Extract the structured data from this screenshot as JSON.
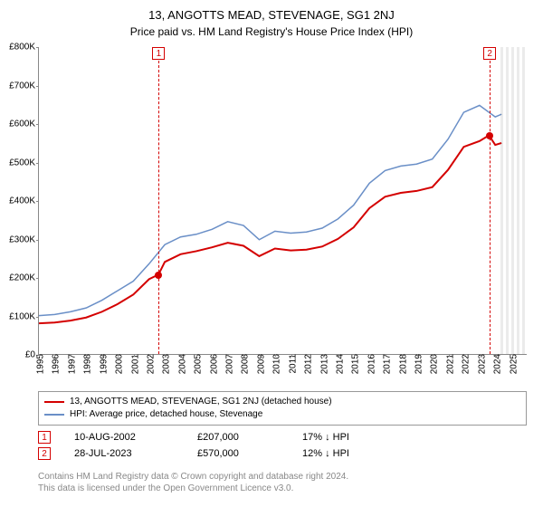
{
  "title_line1": "13, ANGOTTS MEAD, STEVENAGE, SG1 2NJ",
  "title_line2": "Price paid vs. HM Land Registry's House Price Index (HPI)",
  "chart": {
    "type": "line",
    "background_color": "#ffffff",
    "axis_color": "#888888",
    "tick_fontsize": 10,
    "ylim": [
      0,
      800000
    ],
    "ytick_step": 100000,
    "yticks": [
      "£0",
      "£100K",
      "£200K",
      "£300K",
      "£400K",
      "£500K",
      "£600K",
      "£700K",
      "£800K"
    ],
    "xlim": [
      1995,
      2026
    ],
    "xticks": [
      "1995",
      "1996",
      "1997",
      "1998",
      "1999",
      "2000",
      "2001",
      "2002",
      "2003",
      "2004",
      "2005",
      "2006",
      "2007",
      "2008",
      "2009",
      "2010",
      "2011",
      "2012",
      "2013",
      "2014",
      "2015",
      "2016",
      "2017",
      "2018",
      "2019",
      "2020",
      "2021",
      "2022",
      "2023",
      "2024",
      "2025"
    ],
    "forecast_start_year": 2024.3,
    "series": [
      {
        "id": "property",
        "label": "13, ANGOTTS MEAD, STEVENAGE, SG1 2NJ (detached house)",
        "color": "#d40000",
        "line_width": 2,
        "points": [
          [
            1995,
            80000
          ],
          [
            1996,
            82000
          ],
          [
            1997,
            87000
          ],
          [
            1998,
            95000
          ],
          [
            1999,
            110000
          ],
          [
            2000,
            130000
          ],
          [
            2001,
            155000
          ],
          [
            2002,
            195000
          ],
          [
            2002.6,
            207000
          ],
          [
            2003,
            240000
          ],
          [
            2004,
            260000
          ],
          [
            2005,
            268000
          ],
          [
            2006,
            278000
          ],
          [
            2007,
            290000
          ],
          [
            2008,
            282000
          ],
          [
            2009,
            255000
          ],
          [
            2010,
            275000
          ],
          [
            2011,
            270000
          ],
          [
            2012,
            272000
          ],
          [
            2013,
            280000
          ],
          [
            2014,
            300000
          ],
          [
            2015,
            330000
          ],
          [
            2016,
            380000
          ],
          [
            2017,
            410000
          ],
          [
            2018,
            420000
          ],
          [
            2019,
            425000
          ],
          [
            2020,
            435000
          ],
          [
            2021,
            480000
          ],
          [
            2022,
            540000
          ],
          [
            2023,
            555000
          ],
          [
            2023.6,
            570000
          ],
          [
            2024,
            545000
          ],
          [
            2024.4,
            550000
          ]
        ]
      },
      {
        "id": "hpi",
        "label": "HPI: Average price, detached house, Stevenage",
        "color": "#6a8fc7",
        "line_width": 1.5,
        "points": [
          [
            1995,
            100000
          ],
          [
            1996,
            103000
          ],
          [
            1997,
            110000
          ],
          [
            1998,
            120000
          ],
          [
            1999,
            140000
          ],
          [
            2000,
            165000
          ],
          [
            2001,
            190000
          ],
          [
            2002,
            235000
          ],
          [
            2003,
            285000
          ],
          [
            2004,
            305000
          ],
          [
            2005,
            312000
          ],
          [
            2006,
            325000
          ],
          [
            2007,
            345000
          ],
          [
            2008,
            335000
          ],
          [
            2009,
            298000
          ],
          [
            2010,
            320000
          ],
          [
            2011,
            315000
          ],
          [
            2012,
            318000
          ],
          [
            2013,
            328000
          ],
          [
            2014,
            352000
          ],
          [
            2015,
            388000
          ],
          [
            2016,
            445000
          ],
          [
            2017,
            478000
          ],
          [
            2018,
            490000
          ],
          [
            2019,
            495000
          ],
          [
            2020,
            508000
          ],
          [
            2021,
            560000
          ],
          [
            2022,
            630000
          ],
          [
            2023,
            648000
          ],
          [
            2024,
            618000
          ],
          [
            2024.4,
            625000
          ]
        ]
      }
    ],
    "sale_markers": [
      {
        "year": 2002.6,
        "value": 207000,
        "color": "#d40000"
      },
      {
        "year": 2023.6,
        "value": 570000,
        "color": "#d40000"
      }
    ],
    "event_lines": [
      {
        "n": "1",
        "year": 2002.6,
        "color": "#d40000"
      },
      {
        "n": "2",
        "year": 2023.6,
        "color": "#d40000"
      }
    ]
  },
  "legend": {
    "items": [
      {
        "color": "#d40000",
        "label": "13, ANGOTTS MEAD, STEVENAGE, SG1 2NJ (detached house)"
      },
      {
        "color": "#6a8fc7",
        "label": "HPI: Average price, detached house, Stevenage"
      }
    ]
  },
  "events_table": [
    {
      "n": "1",
      "date": "10-AUG-2002",
      "price": "£207,000",
      "diff": "17% ↓ HPI"
    },
    {
      "n": "2",
      "date": "28-JUL-2023",
      "price": "£570,000",
      "diff": "12% ↓ HPI"
    }
  ],
  "footer_line1": "Contains HM Land Registry data © Crown copyright and database right 2024.",
  "footer_line2": "This data is licensed under the Open Government Licence v3.0."
}
